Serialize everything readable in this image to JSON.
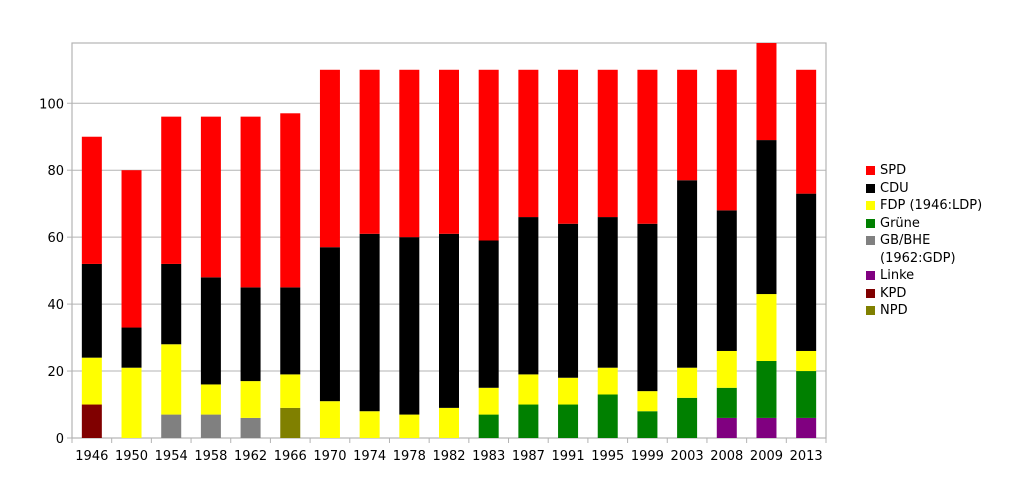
{
  "chart_data": {
    "type": "bar",
    "stacked": true,
    "title": "",
    "xlabel": "",
    "ylabel": "",
    "ylim": [
      0,
      118
    ],
    "yticks": [
      0,
      20,
      40,
      60,
      80,
      100
    ],
    "grid": true,
    "legend_position": "right",
    "categories": [
      "1946",
      "1950",
      "1954",
      "1958",
      "1962",
      "1966",
      "1970",
      "1974",
      "1978",
      "1982",
      "1983",
      "1987",
      "1991",
      "1995",
      "1999",
      "2003",
      "2008",
      "2009",
      "2013"
    ],
    "series": [
      {
        "name": "KPD",
        "color": "#800000",
        "values": [
          10,
          0,
          0,
          0,
          0,
          0,
          0,
          0,
          0,
          0,
          0,
          0,
          0,
          0,
          0,
          0,
          0,
          0,
          0
        ]
      },
      {
        "name": "NPD",
        "color": "#808000",
        "values": [
          0,
          0,
          0,
          0,
          0,
          9,
          0,
          0,
          0,
          0,
          0,
          0,
          0,
          0,
          0,
          0,
          0,
          0,
          0
        ]
      },
      {
        "name": "GB/BHE (1962:GDP)",
        "color": "#808080",
        "values": [
          0,
          0,
          7,
          7,
          6,
          0,
          0,
          0,
          0,
          0,
          0,
          0,
          0,
          0,
          0,
          0,
          0,
          0,
          0
        ]
      },
      {
        "name": "Linke",
        "color": "#800080",
        "values": [
          0,
          0,
          0,
          0,
          0,
          0,
          0,
          0,
          0,
          0,
          0,
          0,
          0,
          0,
          0,
          0,
          6,
          6,
          6
        ]
      },
      {
        "name": "Grüne",
        "color": "#008000",
        "values": [
          0,
          0,
          0,
          0,
          0,
          0,
          0,
          0,
          0,
          0,
          7,
          10,
          10,
          13,
          8,
          12,
          9,
          17,
          14
        ]
      },
      {
        "name": "FDP (1946:LDP)",
        "color": "#ffff00",
        "values": [
          14,
          21,
          21,
          9,
          11,
          10,
          11,
          8,
          7,
          9,
          8,
          9,
          8,
          8,
          6,
          9,
          11,
          20,
          6
        ]
      },
      {
        "name": "CDU",
        "color": "#000000",
        "values": [
          28,
          12,
          24,
          32,
          28,
          26,
          46,
          53,
          53,
          52,
          44,
          47,
          46,
          45,
          50,
          56,
          42,
          46,
          47
        ]
      },
      {
        "name": "SPD",
        "color": "#ff0000",
        "values": [
          38,
          47,
          44,
          48,
          51,
          52,
          53,
          49,
          50,
          49,
          51,
          44,
          46,
          44,
          46,
          33,
          42,
          29,
          37
        ]
      }
    ],
    "totals": [
      90,
      80,
      96,
      96,
      96,
      97,
      110,
      110,
      110,
      110,
      110,
      110,
      110,
      110,
      110,
      110,
      110,
      118,
      110
    ]
  },
  "legend": {
    "items": [
      {
        "label": "SPD",
        "color": "#ff0000"
      },
      {
        "label": "CDU",
        "color": "#000000"
      },
      {
        "label": "FDP (1946:LDP)",
        "color": "#ffff00"
      },
      {
        "label": "Grüne",
        "color": "#008000"
      },
      {
        "label": "GB/BHE\n(1962:GDP)",
        "color": "#808080"
      },
      {
        "label": "Linke",
        "color": "#800080"
      },
      {
        "label": "KPD",
        "color": "#800000"
      },
      {
        "label": "NPD",
        "color": "#808000"
      }
    ]
  }
}
